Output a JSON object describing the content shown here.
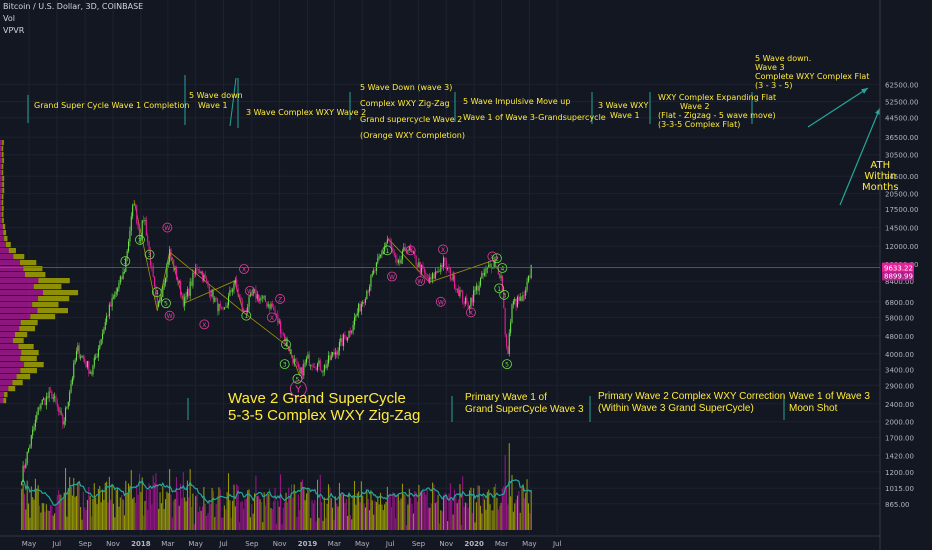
{
  "header": {
    "symbol": "Bitcoin / U.S. Dollar, 3D, COINBASE",
    "vol": "Vol",
    "vpvr": "VPVR"
  },
  "colors": {
    "background": "#131722",
    "up_candle": "#6ee34a",
    "down_candle": "#e91e9a",
    "annotation": "#ffeb3b",
    "wave_label": "#e040a0",
    "trendline": "#c8b400",
    "ma_line": "#26a69a",
    "price_line": "#e91e9a",
    "volume_up": "#b7b800",
    "volume_down": "#b5179e"
  },
  "annotations": {
    "a1": "Grand Super Cycle Wave 1 Completion",
    "a2_l1": "5 Wave down",
    "a2_l2": "Wave 1",
    "a3": "3 Wave Complex WXY Wave 2",
    "a4_l1": "5 Wave Down (wave 3)",
    "a4_l2": "Complex WXY Zig-Zag",
    "a4_l3": "Grand supercycle Wave 2",
    "a4_l4": "(Orange WXY Completion)",
    "a5_l1": "5 Wave Impulsive Move up",
    "a5_l2": "Wave 1 of Wave 3-Grandsupercycle",
    "a6_l1": "3 Wave WXY",
    "a6_l2": "Wave 1",
    "a7_l1": "WXY Complex Expanding Flat",
    "a7_l2": "Wave 2",
    "a7_l3": "(Flat - Zigzag - 5 wave move)",
    "a7_l4": "(3-3-5 Complex Flat)",
    "a8_l1": "5 Wave down.",
    "a8_l2": "Wave 3",
    "a8_l3": "Complete WXY Complex Flat",
    "a8_l4": "(3 - 3 - 5)",
    "ath_l1": "ATH",
    "ath_l2": "Within",
    "ath_l3": "Months",
    "big1_l1": "Wave 2 Grand SuperCycle",
    "big1_l2": "5-3-5 Complex WXY Zig-Zag",
    "big2_l1": "Primary Wave 1 of",
    "big2_l2": "Grand SuperCycle Wave 3",
    "big3_l1": "Primary Wave 2 Complex WXY Correction",
    "big3_l2": "(Within Wave 3 Grand SuperCycle)",
    "big4_l1": "Wave 1 of Wave 3",
    "big4_l2": "Moon Shot"
  },
  "chart_data": {
    "type": "candlestick",
    "title": "Bitcoin / U.S. Dollar, 3D, COINBASE",
    "y_scale": "log",
    "ylim": [
      780,
      70000
    ],
    "x_tick_labels": [
      "May",
      "Jul",
      "Sep",
      "Nov",
      "2018",
      "Mar",
      "May",
      "Jul",
      "Sep",
      "Nov",
      "2019",
      "Mar",
      "May",
      "Jul",
      "Sep",
      "Nov",
      "2020",
      "Mar",
      "May",
      "Jul"
    ],
    "y_tick_labels": [
      "62500.00",
      "52500.00",
      "44500.00",
      "36500.00",
      "30500.00",
      "24500.00",
      "20500.00",
      "17500.00",
      "14500.00",
      "12000.00",
      "10000.00",
      "8400.00",
      "6800.00",
      "5800.00",
      "4800.00",
      "4000.00",
      "3400.00",
      "2900.00",
      "2400.00",
      "2000.00",
      "1700.00",
      "1420.00",
      "1200.00",
      "1015.00",
      "865.00"
    ],
    "last_price_label": "9633.22",
    "second_price_label": "8899.99",
    "price_path": [
      {
        "date": "2017-04-15",
        "close": 1150
      },
      {
        "date": "2017-05-25",
        "close": 2400
      },
      {
        "date": "2017-06-20",
        "close": 2650
      },
      {
        "date": "2017-07-15",
        "close": 1950
      },
      {
        "date": "2017-08-15",
        "close": 4200
      },
      {
        "date": "2017-09-15",
        "close": 3300
      },
      {
        "date": "2017-10-20",
        "close": 6000
      },
      {
        "date": "2017-11-25",
        "close": 9200
      },
      {
        "date": "2017-12-17",
        "close": 19200
      },
      {
        "date": "2017-12-30",
        "close": 12800
      },
      {
        "date": "2018-01-08",
        "close": 16500
      },
      {
        "date": "2018-02-06",
        "close": 6200
      },
      {
        "date": "2018-03-05",
        "close": 11300
      },
      {
        "date": "2018-04-06",
        "close": 6700
      },
      {
        "date": "2018-05-05",
        "close": 9900
      },
      {
        "date": "2018-06-29",
        "close": 5900
      },
      {
        "date": "2018-07-25",
        "close": 8400
      },
      {
        "date": "2018-08-14",
        "close": 6100
      },
      {
        "date": "2018-09-05",
        "close": 7400
      },
      {
        "date": "2018-10-15",
        "close": 6500
      },
      {
        "date": "2018-11-20",
        "close": 4300
      },
      {
        "date": "2018-12-15",
        "close": 3200
      },
      {
        "date": "2019-01-01",
        "close": 3800
      },
      {
        "date": "2019-02-05",
        "close": 3450
      },
      {
        "date": "2019-04-02",
        "close": 5000
      },
      {
        "date": "2019-05-15",
        "close": 8000
      },
      {
        "date": "2019-06-26",
        "close": 13000
      },
      {
        "date": "2019-07-17",
        "close": 9600
      },
      {
        "date": "2019-08-06",
        "close": 12000
      },
      {
        "date": "2019-09-25",
        "close": 8300
      },
      {
        "date": "2019-10-26",
        "close": 10200
      },
      {
        "date": "2019-12-17",
        "close": 6500
      },
      {
        "date": "2020-01-20",
        "close": 8800
      },
      {
        "date": "2020-02-13",
        "close": 10400
      },
      {
        "date": "2020-03-01",
        "close": 8600
      },
      {
        "date": "2020-03-13",
        "close": 3850
      },
      {
        "date": "2020-03-25",
        "close": 6700
      },
      {
        "date": "2020-04-20",
        "close": 7000
      },
      {
        "date": "2020-05-05",
        "close": 9633
      }
    ],
    "wave_labels": [
      {
        "text": "1",
        "date": "2017-11-28",
        "price": 10300
      },
      {
        "text": "2",
        "date": "2017-12-30",
        "price": 12800
      },
      {
        "text": "3",
        "date": "2018-01-20",
        "price": 11000
      },
      {
        "text": "4",
        "date": "2018-02-05",
        "price": 7500
      },
      {
        "text": "5",
        "date": "2018-02-25",
        "price": 6700
      },
      {
        "text": "W",
        "date": "2018-03-05",
        "price": 5900
      },
      {
        "text": "W",
        "date": "2018-02-28",
        "price": 14500
      },
      {
        "text": "X",
        "date": "2018-05-20",
        "price": 5400
      },
      {
        "text": "X",
        "date": "2018-08-15",
        "price": 9500
      },
      {
        "text": "W",
        "date": "2018-08-28",
        "price": 7600
      },
      {
        "text": "1",
        "date": "2018-08-20",
        "price": 5900
      },
      {
        "text": "X",
        "date": "2018-10-15",
        "price": 5800
      },
      {
        "text": "Z",
        "date": "2018-11-02",
        "price": 7000
      },
      {
        "text": "4",
        "date": "2018-11-15",
        "price": 4400
      },
      {
        "text": "3",
        "date": "2018-11-12",
        "price": 3600
      },
      {
        "text": "5",
        "date": "2018-12-10",
        "price": 3100
      },
      {
        "text": "Y",
        "date": "2018-12-12",
        "price": 2800
      },
      {
        "text": "1",
        "date": "2019-06-25",
        "price": 11500
      },
      {
        "text": "W",
        "date": "2019-07-05",
        "price": 8800
      },
      {
        "text": "X",
        "date": "2019-08-15",
        "price": 11500
      },
      {
        "text": "W",
        "date": "2019-09-05",
        "price": 8400
      },
      {
        "text": "X",
        "date": "2019-10-25",
        "price": 11600
      },
      {
        "text": "W",
        "date": "2019-10-20",
        "price": 6800
      },
      {
        "text": "X",
        "date": "2019-12-25",
        "price": 6100
      },
      {
        "text": "X",
        "date": "2020-02-10",
        "price": 10800
      },
      {
        "text": "2",
        "date": "2020-02-20",
        "price": 10600
      },
      {
        "text": "4",
        "date": "2020-03-03",
        "price": 9600
      },
      {
        "text": "1",
        "date": "2020-02-25",
        "price": 7800
      },
      {
        "text": "3",
        "date": "2020-03-07",
        "price": 7300
      },
      {
        "text": "5",
        "date": "2020-03-13",
        "price": 3600
      }
    ]
  }
}
